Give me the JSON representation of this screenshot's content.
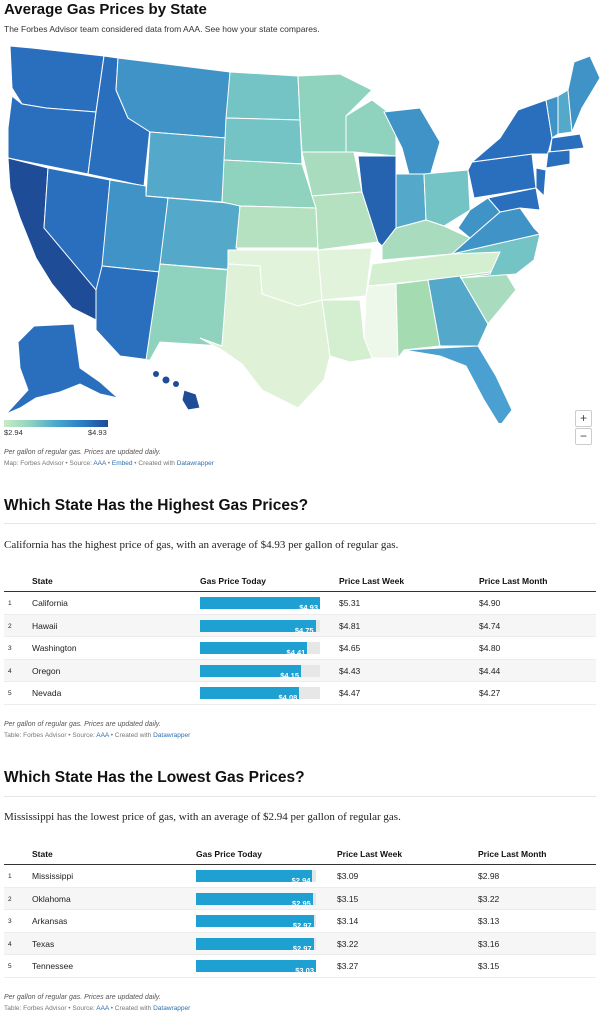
{
  "map": {
    "title": "Average Gas Prices by State",
    "subtitle": "The Forbes Advisor team considered data from AAA. See how your state compares.",
    "legend_min": "$2.94",
    "legend_max": "$4.93",
    "zoom_in": "+",
    "zoom_out": "−",
    "note": "Per gallon of regular gas. Prices are updated daily.",
    "source_prefix": "Map: Forbes Advisor • Source: ",
    "source_link": "AAA",
    "source_sep": " • ",
    "embed_link": "Embed",
    "source_created": " • Created with ",
    "datawrapper_link": "Datawrapper",
    "colors": {
      "low": "#c8ebc4",
      "mid": "#8fd3bf",
      "midhigh": "#4aa8cd",
      "high": "#2a7ec3",
      "highest": "#1e4c97"
    }
  },
  "highest": {
    "heading": "Which State Has the Highest Gas Prices?",
    "text": "California has the highest price of gas, with an average of $4.93 per gallon of regular gas.",
    "columns": [
      "State",
      "Gas Price Today",
      "Price Last Week",
      "Price Last Month"
    ],
    "rows": [
      {
        "rank": "1",
        "state": "California",
        "today": "$4.93",
        "today_value": 4.93,
        "week": "$5.31",
        "month": "$4.90"
      },
      {
        "rank": "2",
        "state": "Hawaii",
        "today": "$4.75",
        "today_value": 4.75,
        "week": "$4.81",
        "month": "$4.74"
      },
      {
        "rank": "3",
        "state": "Washington",
        "today": "$4.41",
        "today_value": 4.41,
        "week": "$4.65",
        "month": "$4.80"
      },
      {
        "rank": "4",
        "state": "Oregon",
        "today": "$4.15",
        "today_value": 4.15,
        "week": "$4.43",
        "month": "$4.44"
      },
      {
        "rank": "5",
        "state": "Nevada",
        "today": "$4.08",
        "today_value": 4.08,
        "week": "$4.47",
        "month": "$4.27"
      }
    ],
    "bar_max": 4.93,
    "note": "Per gallon of regular gas. Prices are updated daily.",
    "source_prefix": "Table: Forbes Advisor • Source: ",
    "source_link": "AAA",
    "source_created": " • Created with ",
    "datawrapper_link": "Datawrapper"
  },
  "lowest": {
    "heading": "Which State Has the Lowest Gas Prices?",
    "text": "Mississippi has the lowest price of gas, with an average of $2.94 per gallon of regular gas.",
    "columns": [
      "State",
      "Gas Price Today",
      "Price Last Week",
      "Price Last Month"
    ],
    "rows": [
      {
        "rank": "1",
        "state": "Mississippi",
        "today": "$2.94",
        "today_value": 2.94,
        "week": "$3.09",
        "month": "$2.98"
      },
      {
        "rank": "2",
        "state": "Oklahoma",
        "today": "$2.95",
        "today_value": 2.95,
        "week": "$3.15",
        "month": "$3.22"
      },
      {
        "rank": "3",
        "state": "Arkansas",
        "today": "$2.97",
        "today_value": 2.97,
        "week": "$3.14",
        "month": "$3.13"
      },
      {
        "rank": "4",
        "state": "Texas",
        "today": "$2.97",
        "today_value": 2.97,
        "week": "$3.22",
        "month": "$3.16"
      },
      {
        "rank": "5",
        "state": "Tennessee",
        "today": "$3.03",
        "today_value": 3.03,
        "week": "$3.27",
        "month": "$3.15"
      }
    ],
    "bar_max": 3.03,
    "note": "Per gallon of regular gas. Prices are updated daily.",
    "source_prefix": "Table: Forbes Advisor • Source: ",
    "source_link": "AAA",
    "source_created": " • Created with ",
    "datawrapper_link": "Datawrapper"
  }
}
